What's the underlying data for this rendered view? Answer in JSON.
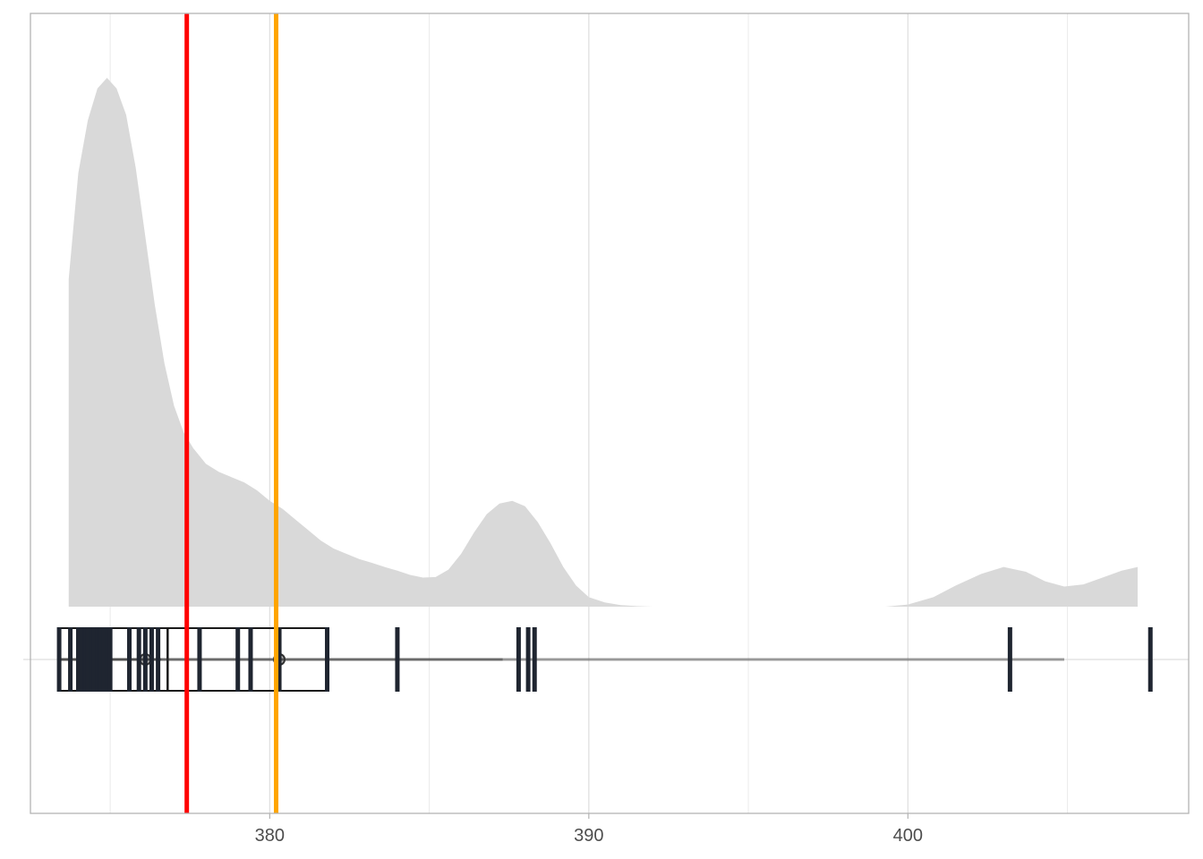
{
  "chart_data": {
    "type": "density",
    "title": "",
    "xlabel": "",
    "ylabel": "",
    "xlim": [
      372.5,
      408.8
    ],
    "x_ticks": [
      380,
      390,
      400
    ],
    "x_tick_labels": [
      "380",
      "390",
      "400"
    ],
    "grid": true,
    "density_color": "#d9d9d9",
    "density_curve": {
      "x": [
        373.7,
        374.0,
        374.3,
        374.6,
        374.9,
        375.2,
        375.5,
        375.8,
        376.1,
        376.4,
        376.7,
        377.0,
        377.3,
        377.6,
        378.0,
        378.4,
        378.8,
        379.2,
        379.6,
        380.0,
        380.4,
        380.8,
        381.2,
        381.6,
        382.0,
        382.4,
        382.8,
        383.2,
        383.6,
        384.0,
        384.4,
        384.8,
        385.2,
        385.6,
        386.0,
        386.4,
        386.8,
        387.2,
        387.6,
        388.0,
        388.4,
        388.8,
        389.2,
        389.6,
        390.0,
        390.5,
        391.0,
        391.5,
        392.0,
        392.4,
        399.3,
        400.0,
        400.8,
        401.5,
        402.3,
        403.0,
        403.7,
        404.3,
        404.9,
        405.5,
        406.1,
        406.7,
        407.2
      ],
      "density": [
        0.62,
        0.82,
        0.92,
        0.98,
        1.0,
        0.98,
        0.93,
        0.83,
        0.7,
        0.57,
        0.46,
        0.38,
        0.33,
        0.3,
        0.27,
        0.255,
        0.245,
        0.235,
        0.22,
        0.2,
        0.185,
        0.165,
        0.145,
        0.125,
        0.11,
        0.1,
        0.09,
        0.083,
        0.075,
        0.068,
        0.06,
        0.055,
        0.056,
        0.07,
        0.1,
        0.14,
        0.175,
        0.195,
        0.2,
        0.19,
        0.16,
        0.12,
        0.075,
        0.04,
        0.018,
        0.008,
        0.003,
        0.001,
        0.0,
        0.0,
        0.0,
        0.004,
        0.018,
        0.04,
        0.062,
        0.075,
        0.066,
        0.048,
        0.038,
        0.042,
        0.055,
        0.068,
        0.075
      ]
    },
    "rug_values": [
      373.4,
      373.75,
      374.0,
      374.1,
      374.2,
      374.25,
      374.3,
      374.4,
      374.45,
      374.5,
      374.6,
      374.7,
      374.8,
      374.9,
      375.0,
      375.6,
      375.9,
      376.1,
      376.3,
      376.5,
      377.8,
      379.0,
      379.4,
      380.3,
      381.8,
      384.0,
      387.8,
      388.1,
      388.3,
      403.2,
      407.6
    ],
    "boxplots": [
      {
        "q1": 373.4,
        "median": 374.5,
        "q3": 375.0,
        "whisker_low": 373.4,
        "whisker_high": 376.6
      },
      {
        "q1": 374.2,
        "median": 376.8,
        "q3": 381.8,
        "whisker_low": 373.4,
        "whisker_high": 387.3
      },
      {
        "q1": 373.4,
        "median": 376.1,
        "q3": 380.3,
        "whisker_low": 373.4,
        "whisker_high": 404.9
      }
    ],
    "mean_points": [
      376.1,
      380.3
    ],
    "vlines": [
      {
        "x": 377.4,
        "color": "#ff0000"
      },
      {
        "x": 380.2,
        "color": "#ffa500"
      }
    ]
  }
}
